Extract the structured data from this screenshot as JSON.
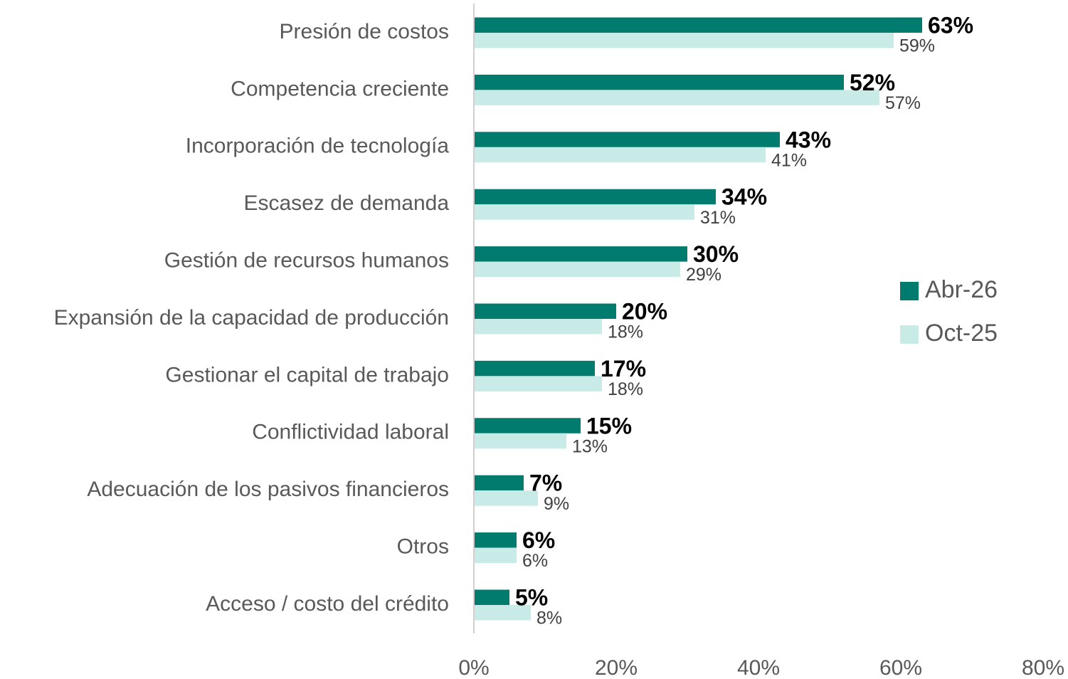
{
  "chart_data": {
    "type": "bar",
    "orientation": "horizontal",
    "categories": [
      "Presión de costos",
      "Competencia creciente",
      "Incorporación de tecnología",
      "Escasez de demanda",
      "Gestión de recursos humanos",
      "Expansión de la capacidad de producción",
      "Gestionar el capital de trabajo",
      "Conflictividad laboral",
      "Adecuación de los pasivos financieros",
      "Otros",
      "Acceso / costo del crédito"
    ],
    "series": [
      {
        "name": "Abr-26",
        "color": "#007b6e",
        "values": [
          63,
          52,
          43,
          34,
          30,
          20,
          17,
          15,
          7,
          6,
          5
        ],
        "value_labels": [
          "63%",
          "52%",
          "43%",
          "34%",
          "30%",
          "20%",
          "17%",
          "15%",
          "7%",
          "6%",
          "5%"
        ]
      },
      {
        "name": "Oct-25",
        "color": "#c8ebe8",
        "values": [
          59,
          57,
          41,
          31,
          29,
          18,
          18,
          13,
          9,
          6,
          8
        ],
        "value_labels": [
          "59%",
          "57%",
          "41%",
          "31%",
          "29%",
          "18%",
          "18%",
          "13%",
          "9%",
          "6%",
          "8%"
        ]
      }
    ],
    "xlim": [
      0,
      80
    ],
    "xticks": [
      {
        "value": 0,
        "label": "0%"
      },
      {
        "value": 20,
        "label": "20%"
      },
      {
        "value": 40,
        "label": "40%"
      },
      {
        "value": 60,
        "label": "60%"
      },
      {
        "value": 80,
        "label": "80%"
      }
    ],
    "grid": false,
    "legend": "right"
  }
}
